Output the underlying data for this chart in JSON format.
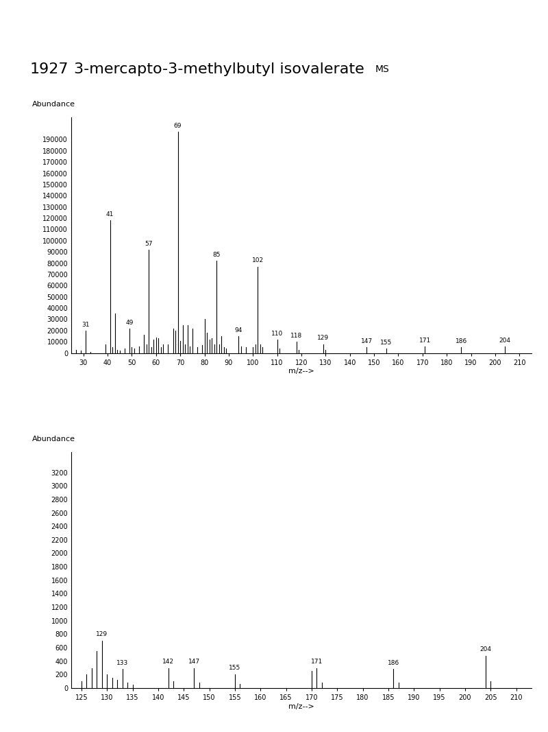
{
  "title_number": "1927",
  "title_name": "3-mercapto-3-methylbutyl isovalerate",
  "title_ms": "MS",
  "title_fontsize": 16,
  "title_ms_fontsize": 10,
  "chart1": {
    "peaks": [
      [
        27,
        3000
      ],
      [
        29,
        2000
      ],
      [
        31,
        20000
      ],
      [
        33,
        1000
      ],
      [
        39,
        8000
      ],
      [
        41,
        118000
      ],
      [
        42,
        5000
      ],
      [
        43,
        35000
      ],
      [
        44,
        3000
      ],
      [
        45,
        2000
      ],
      [
        47,
        4000
      ],
      [
        49,
        22000
      ],
      [
        50,
        5000
      ],
      [
        51,
        4000
      ],
      [
        53,
        6000
      ],
      [
        55,
        16000
      ],
      [
        56,
        8000
      ],
      [
        57,
        92000
      ],
      [
        58,
        5000
      ],
      [
        59,
        12000
      ],
      [
        60,
        14000
      ],
      [
        61,
        13000
      ],
      [
        62,
        5000
      ],
      [
        63,
        8000
      ],
      [
        65,
        8000
      ],
      [
        67,
        22000
      ],
      [
        68,
        20000
      ],
      [
        69,
        197000
      ],
      [
        70,
        11000
      ],
      [
        71,
        25000
      ],
      [
        72,
        8000
      ],
      [
        73,
        25000
      ],
      [
        74,
        6000
      ],
      [
        75,
        22000
      ],
      [
        77,
        5000
      ],
      [
        79,
        7000
      ],
      [
        80,
        30000
      ],
      [
        81,
        18000
      ],
      [
        82,
        12000
      ],
      [
        83,
        13000
      ],
      [
        84,
        8000
      ],
      [
        85,
        82000
      ],
      [
        86,
        8000
      ],
      [
        87,
        15000
      ],
      [
        88,
        5000
      ],
      [
        89,
        4000
      ],
      [
        94,
        15000
      ],
      [
        95,
        6000
      ],
      [
        97,
        5000
      ],
      [
        100,
        5000
      ],
      [
        101,
        8000
      ],
      [
        102,
        77000
      ],
      [
        103,
        8000
      ],
      [
        104,
        5000
      ],
      [
        110,
        12000
      ],
      [
        111,
        4000
      ],
      [
        118,
        10000
      ],
      [
        119,
        3000
      ],
      [
        129,
        8000
      ],
      [
        130,
        3000
      ],
      [
        147,
        5000
      ],
      [
        155,
        4000
      ],
      [
        171,
        6000
      ],
      [
        186,
        5000
      ],
      [
        204,
        6000
      ]
    ],
    "labeled_peaks": {
      "31": 20000,
      "41": 118000,
      "49": 22000,
      "57": 92000,
      "69": 197000,
      "85": 82000,
      "94": 15000,
      "102": 77000,
      "110": 12000,
      "118": 10000,
      "129": 8000,
      "147": 5000,
      "155": 4000,
      "171": 6000,
      "186": 5000,
      "204": 6000
    },
    "ylabel": "Abundance",
    "xlabel": "m/z-->",
    "xlim": [
      25,
      215
    ],
    "ylim": [
      0,
      210000
    ],
    "yticks": [
      0,
      10000,
      20000,
      30000,
      40000,
      50000,
      60000,
      70000,
      80000,
      90000,
      100000,
      110000,
      120000,
      130000,
      140000,
      150000,
      160000,
      170000,
      180000,
      190000
    ],
    "xticks": [
      30,
      40,
      50,
      60,
      70,
      80,
      90,
      100,
      110,
      120,
      130,
      140,
      150,
      160,
      170,
      180,
      190,
      200,
      210
    ]
  },
  "chart2": {
    "peaks": [
      [
        125,
        100
      ],
      [
        126,
        200
      ],
      [
        127,
        300
      ],
      [
        128,
        550
      ],
      [
        129,
        700
      ],
      [
        130,
        200
      ],
      [
        131,
        150
      ],
      [
        132,
        120
      ],
      [
        133,
        280
      ],
      [
        134,
        80
      ],
      [
        135,
        50
      ],
      [
        142,
        300
      ],
      [
        143,
        100
      ],
      [
        147,
        300
      ],
      [
        148,
        80
      ],
      [
        155,
        200
      ],
      [
        156,
        60
      ],
      [
        170,
        250
      ],
      [
        171,
        300
      ],
      [
        172,
        80
      ],
      [
        186,
        280
      ],
      [
        187,
        80
      ],
      [
        204,
        480
      ],
      [
        205,
        100
      ]
    ],
    "labeled_peaks": {
      "129": 700,
      "133": 280,
      "142": 300,
      "147": 300,
      "155": 200,
      "171": 300,
      "186": 280,
      "204": 480
    },
    "ylabel": "Abundance",
    "xlabel": "m/z-->",
    "xlim": [
      123,
      213
    ],
    "ylim": [
      0,
      3500
    ],
    "yticks": [
      0,
      200,
      400,
      600,
      800,
      1000,
      1200,
      1400,
      1600,
      1800,
      2000,
      2200,
      2400,
      2600,
      2800,
      3000,
      3200
    ],
    "xticks": [
      125,
      130,
      135,
      140,
      145,
      150,
      155,
      160,
      165,
      170,
      175,
      180,
      185,
      190,
      195,
      200,
      205,
      210
    ]
  }
}
